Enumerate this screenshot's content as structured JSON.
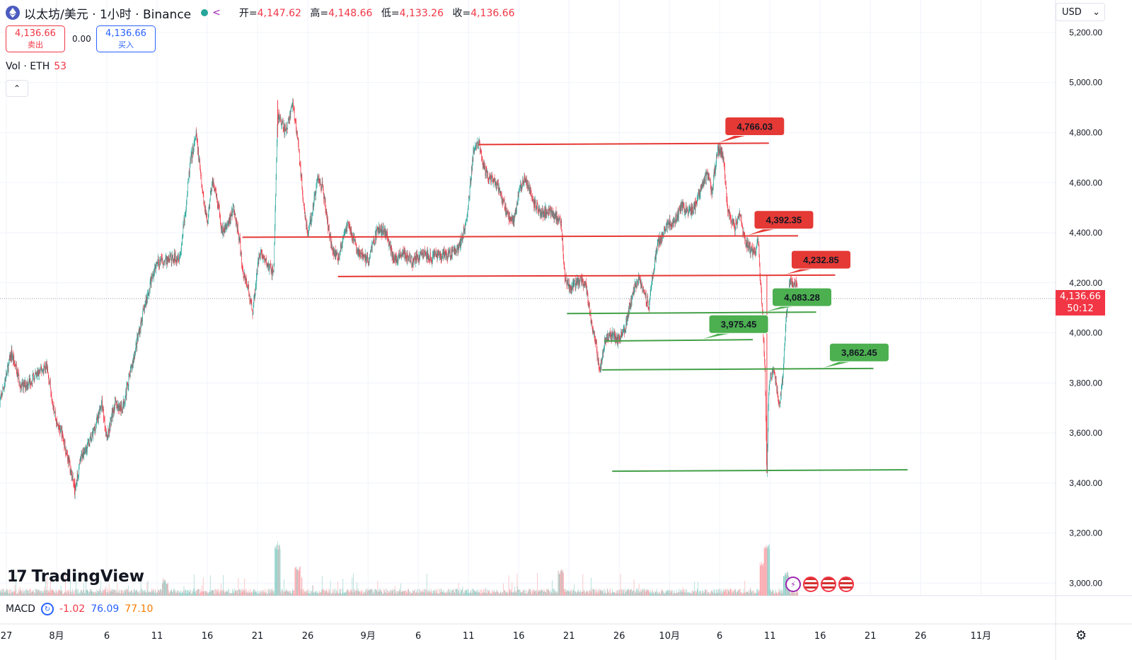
{
  "header": {
    "symbol_title": "以太坊/美元 · 1小时 · Binance",
    "ohlc": [
      {
        "key": "开",
        "value": "4,147.62"
      },
      {
        "key": "高",
        "value": "4,148.66"
      },
      {
        "key": "低",
        "value": "4,133.26"
      },
      {
        "key": "收",
        "value": "4,136.66"
      }
    ]
  },
  "trade": {
    "sell_price": "4,136.66",
    "sell_label": "卖出",
    "spread": "0.00",
    "buy_price": "4,136.66",
    "buy_label": "买入"
  },
  "volume": {
    "label": "Vol · ETH",
    "value": "53"
  },
  "currency": {
    "label": "USD",
    "chevron": "⌄"
  },
  "collapse_icon": "⌃",
  "last_price": {
    "value": "4,136.66",
    "countdown": "50:12"
  },
  "logo": {
    "mark": "17",
    "text": "TradingView"
  },
  "macd": {
    "label": "MACD",
    "values": [
      "-1.02",
      "76.09",
      "77.10"
    ]
  },
  "icons": {
    "eth": "ethereum-icon",
    "flow": "flow-icon",
    "macd": "macd-settings-icon",
    "settings": "gear-icon"
  },
  "colors": {
    "up": "#26a69a",
    "down": "#f23645",
    "resistance": "#e53935",
    "support": "#43a047",
    "label_red": "#e53935",
    "label_green": "#4caf50"
  },
  "chart_data": {
    "type": "candlestick",
    "timeframe": "1小时",
    "y_ticks": [
      "5,200.00",
      "5,000.00",
      "4,800.00",
      "4,600.00",
      "4,400.00",
      "4,200.00",
      "4,000.00",
      "3,800.00",
      "3,600.00",
      "3,400.00",
      "3,200.00",
      "3,000.00"
    ],
    "y_tick_values": [
      5200,
      5000,
      4800,
      4600,
      4400,
      4200,
      4000,
      3800,
      3600,
      3400,
      3200,
      3000
    ],
    "ylim": [
      2950,
      5330
    ],
    "x_ticks": [
      {
        "label": "27",
        "day": -5
      },
      {
        "label": "8月",
        "day": 0
      },
      {
        "label": "6",
        "day": 5
      },
      {
        "label": "11",
        "day": 10
      },
      {
        "label": "16",
        "day": 15
      },
      {
        "label": "21",
        "day": 20
      },
      {
        "label": "26",
        "day": 25
      },
      {
        "label": "9月",
        "day": 31
      },
      {
        "label": "6",
        "day": 36
      },
      {
        "label": "11",
        "day": 41
      },
      {
        "label": "16",
        "day": 46
      },
      {
        "label": "21",
        "day": 51
      },
      {
        "label": "26",
        "day": 56
      },
      {
        "label": "10月",
        "day": 61
      },
      {
        "label": "6",
        "day": 66
      },
      {
        "label": "11",
        "day": 71
      },
      {
        "label": "16",
        "day": 76
      },
      {
        "label": "21",
        "day": 81
      },
      {
        "label": "26",
        "day": 86
      },
      {
        "label": "11月",
        "day": 92
      }
    ],
    "x_unit": "days since Aug 1",
    "price_path": [
      [
        -5.7,
        3710
      ],
      [
        -4.5,
        3920
      ],
      [
        -3.5,
        3780
      ],
      [
        -2,
        3830
      ],
      [
        -1,
        3870
      ],
      [
        0,
        3640
      ],
      [
        0.5,
        3600
      ],
      [
        1,
        3520
      ],
      [
        1.3,
        3470
      ],
      [
        1.8,
        3370
      ],
      [
        2.5,
        3510
      ],
      [
        3.5,
        3580
      ],
      [
        4.5,
        3720
      ],
      [
        5,
        3580
      ],
      [
        5.8,
        3720
      ],
      [
        6.5,
        3690
      ],
      [
        7.5,
        3870
      ],
      [
        8.5,
        4060
      ],
      [
        9.5,
        4220
      ],
      [
        10,
        4280
      ],
      [
        11,
        4290
      ],
      [
        12.3,
        4310
      ],
      [
        12.8,
        4480
      ],
      [
        13.3,
        4680
      ],
      [
        13.9,
        4790
      ],
      [
        14.5,
        4570
      ],
      [
        15,
        4440
      ],
      [
        15.5,
        4610
      ],
      [
        16,
        4520
      ],
      [
        16.5,
        4400
      ],
      [
        17,
        4430
      ],
      [
        17.6,
        4500
      ],
      [
        18.2,
        4370
      ],
      [
        18.5,
        4250
      ],
      [
        19,
        4190
      ],
      [
        19.5,
        4080
      ],
      [
        20.2,
        4330
      ],
      [
        21,
        4270
      ],
      [
        21.6,
        4240
      ],
      [
        22,
        4870
      ],
      [
        22.8,
        4800
      ],
      [
        23.5,
        4920
      ],
      [
        24,
        4770
      ],
      [
        24.5,
        4550
      ],
      [
        25,
        4390
      ],
      [
        25.5,
        4500
      ],
      [
        26,
        4620
      ],
      [
        26.5,
        4580
      ],
      [
        27,
        4430
      ],
      [
        27.5,
        4330
      ],
      [
        28,
        4300
      ],
      [
        28.5,
        4370
      ],
      [
        29,
        4440
      ],
      [
        30,
        4320
      ],
      [
        31,
        4290
      ],
      [
        32,
        4420
      ],
      [
        32.8,
        4400
      ],
      [
        33.6,
        4290
      ],
      [
        34.5,
        4320
      ],
      [
        35.4,
        4280
      ],
      [
        36.4,
        4320
      ],
      [
        37.3,
        4300
      ],
      [
        38.2,
        4310
      ],
      [
        39,
        4310
      ],
      [
        40,
        4340
      ],
      [
        40.8,
        4440
      ],
      [
        41.5,
        4730
      ],
      [
        42,
        4760
      ],
      [
        42.5,
        4660
      ],
      [
        43,
        4620
      ],
      [
        44,
        4580
      ],
      [
        44.8,
        4480
      ],
      [
        45.5,
        4440
      ],
      [
        46,
        4560
      ],
      [
        46.6,
        4620
      ],
      [
        47.5,
        4520
      ],
      [
        48.3,
        4480
      ],
      [
        49,
        4490
      ],
      [
        49.6,
        4470
      ],
      [
        50.2,
        4440
      ],
      [
        50.6,
        4220
      ],
      [
        51.2,
        4180
      ],
      [
        52,
        4210
      ],
      [
        52.7,
        4190
      ],
      [
        53.2,
        4050
      ],
      [
        53.7,
        3950
      ],
      [
        54.1,
        3850
      ],
      [
        54.6,
        3980
      ],
      [
        55.2,
        3990
      ],
      [
        56,
        3970
      ],
      [
        56.5,
        4000
      ],
      [
        57,
        4100
      ],
      [
        57.6,
        4190
      ],
      [
        58,
        4220
      ],
      [
        58.6,
        4150
      ],
      [
        59,
        4110
      ],
      [
        59.5,
        4280
      ],
      [
        59.9,
        4360
      ],
      [
        60.7,
        4430
      ],
      [
        61.5,
        4440
      ],
      [
        62.2,
        4510
      ],
      [
        62.9,
        4480
      ],
      [
        63.5,
        4500
      ],
      [
        64.2,
        4580
      ],
      [
        64.8,
        4640
      ],
      [
        65.2,
        4560
      ],
      [
        65.8,
        4730
      ],
      [
        66.3,
        4720
      ],
      [
        66.8,
        4500
      ],
      [
        67.5,
        4420
      ],
      [
        68,
        4480
      ],
      [
        68.4,
        4380
      ],
      [
        68.8,
        4340
      ],
      [
        69.5,
        4320
      ],
      [
        69.8,
        4390
      ],
      [
        70.2,
        4110
      ],
      [
        70.5,
        3860
      ],
      [
        70.7,
        3430
      ],
      [
        70.9,
        3800
      ],
      [
        71.3,
        3850
      ],
      [
        72,
        3720
      ],
      [
        72.3,
        3830
      ],
      [
        72.6,
        4060
      ],
      [
        73,
        4210
      ],
      [
        73.6,
        4190
      ],
      [
        73.8,
        4136.66
      ]
    ],
    "spikes": [
      {
        "day": 70.7,
        "high": 4230,
        "low": 3440
      },
      {
        "day": 22,
        "high": 4930,
        "low": 4780
      },
      {
        "day": 1.8,
        "high": 3420,
        "low": 3355
      }
    ],
    "volume_peaks": [
      [
        10.8,
        0.2
      ],
      [
        22,
        0.9
      ],
      [
        24,
        0.45
      ],
      [
        50.2,
        0.4
      ],
      [
        70.7,
        0.9
      ],
      [
        70.3,
        0.55
      ],
      [
        72.6,
        0.35
      ]
    ],
    "resistance_levels": [
      {
        "label": "4,766.03",
        "price": 4766.03,
        "line_price": 4755,
        "day_start": 42,
        "day_end": 70.9
      },
      {
        "label": "4,392.35",
        "price": 4392.35,
        "line_price": 4385,
        "day_start": 18.5,
        "day_end": 73.8
      },
      {
        "label": "4,232.85",
        "price": 4232.85,
        "line_price": 4228,
        "day_start": 28,
        "day_end": 77.5
      }
    ],
    "support_levels": [
      {
        "label": "4,083.28",
        "price": 4083.28,
        "line_price": 4080,
        "day_start": 50.8,
        "day_end": 75.6
      },
      {
        "label": "3,975.45",
        "price": 3975.45,
        "line_price": 3970,
        "day_start": 54.5,
        "day_end": 69.3
      },
      {
        "label": "3,862.45",
        "price": 3862.45,
        "line_price": 3855,
        "day_start": 54.3,
        "day_end": 81.3
      },
      {
        "label": "",
        "price": 3450,
        "line_price": 3450,
        "day_start": 55.3,
        "day_end": 84.7
      }
    ]
  }
}
